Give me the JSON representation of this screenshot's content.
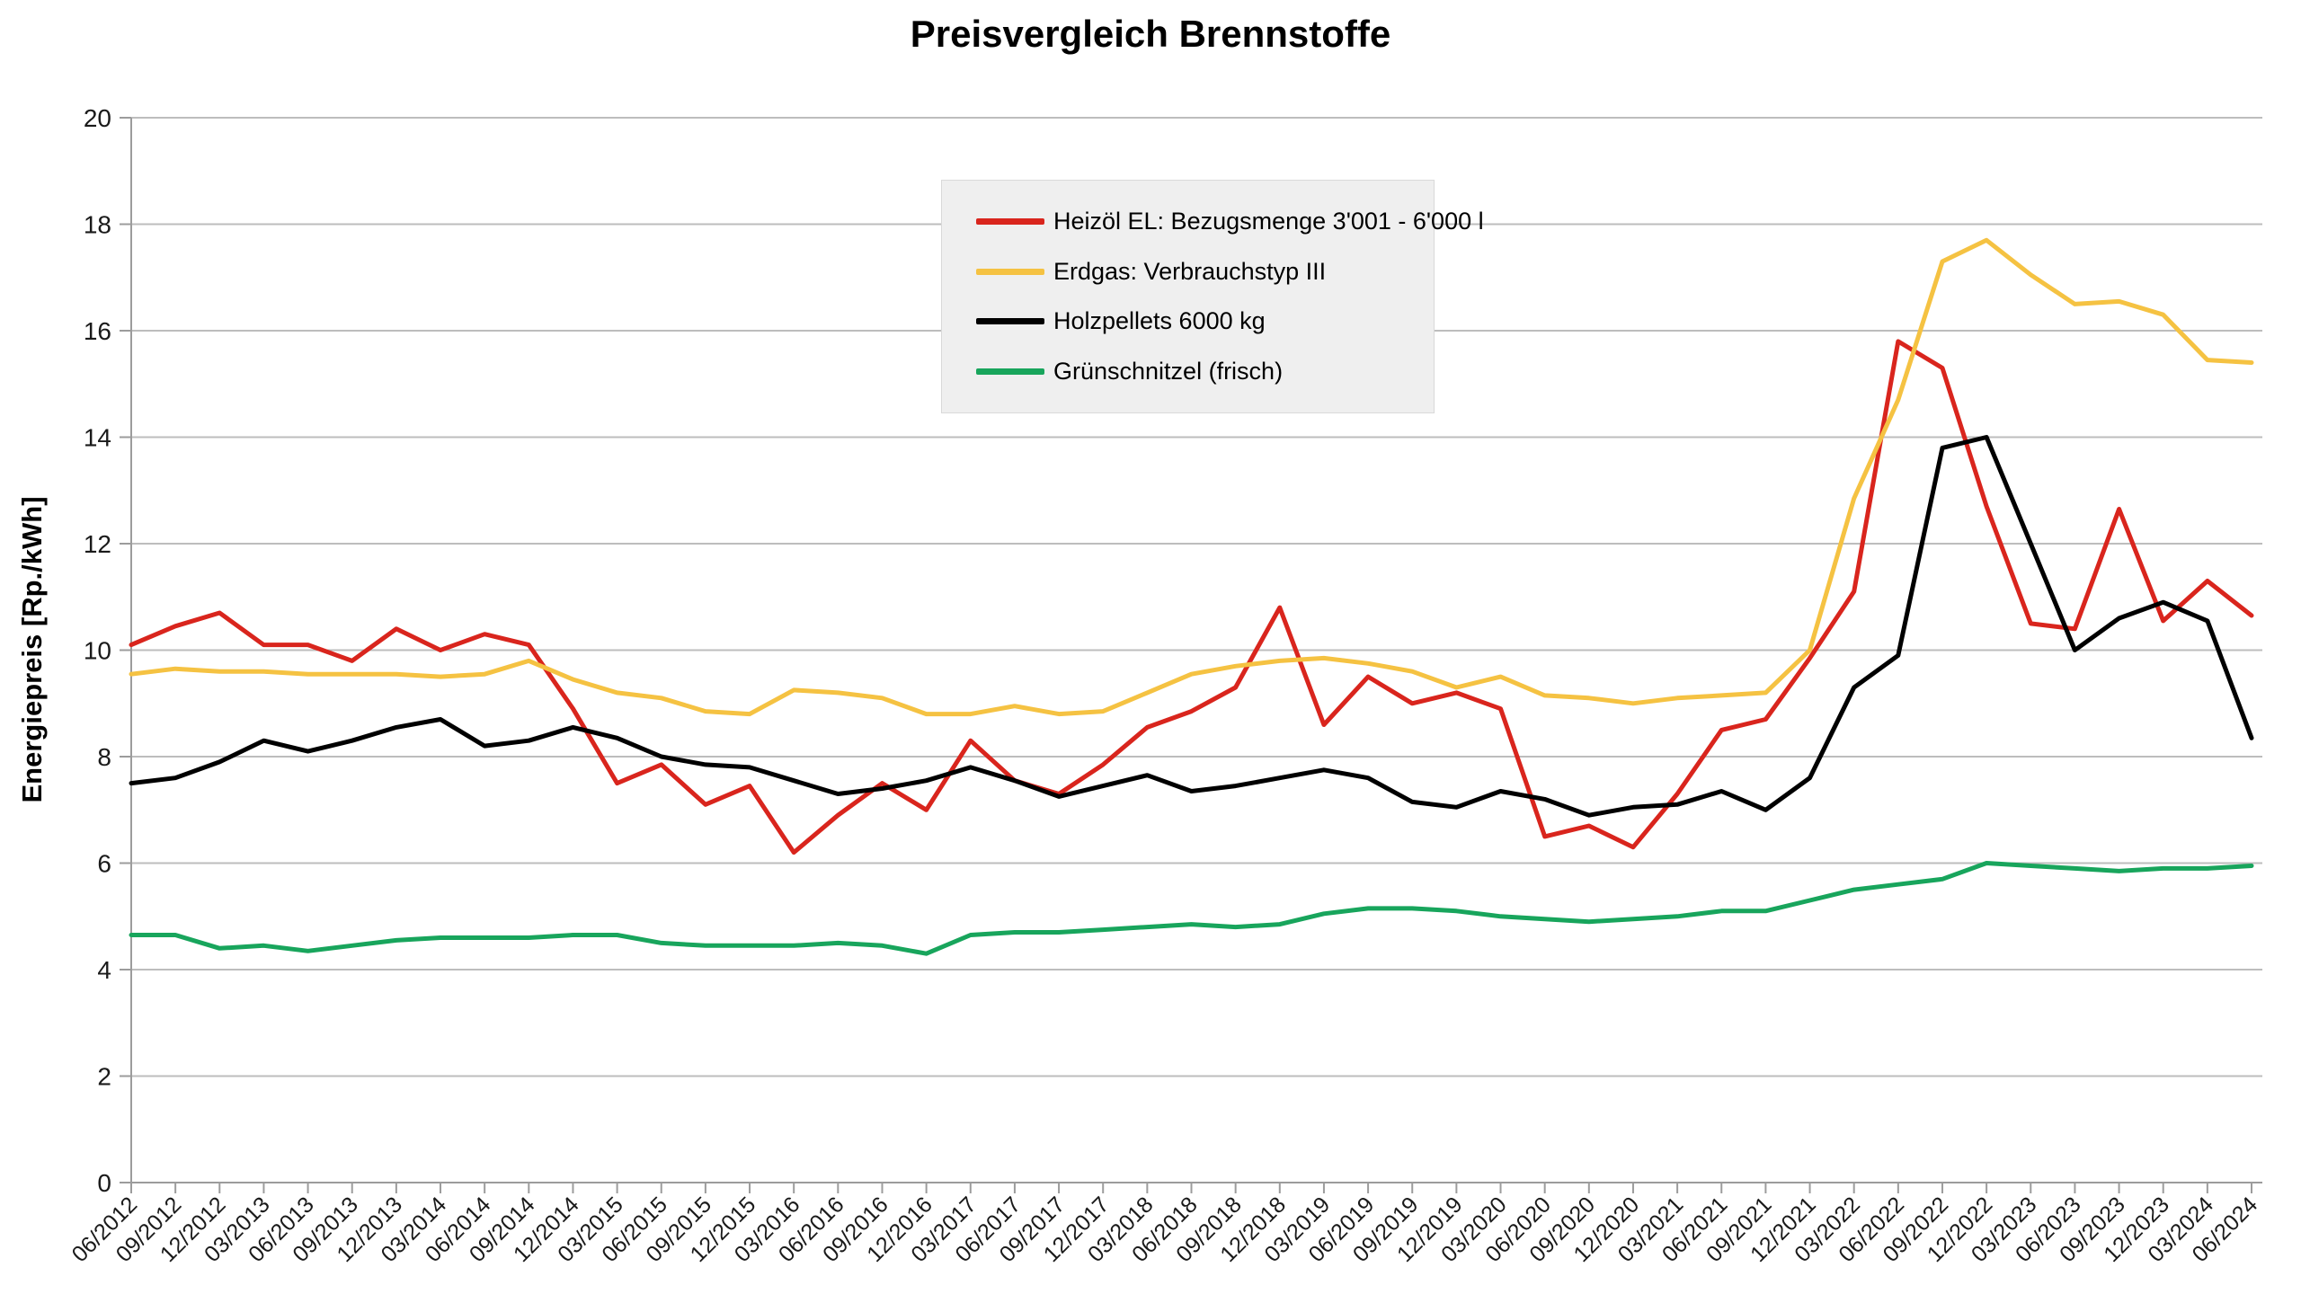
{
  "title": "Preisvergleich Brennstoffe",
  "y_axis": {
    "title": "Energiepreis [Rp./kWh]",
    "min": 0,
    "max": 20,
    "step": 2,
    "tick_labels": [
      "0",
      "2",
      "4",
      "6",
      "8",
      "10",
      "12",
      "14",
      "16",
      "18",
      "20"
    ]
  },
  "x_axis": {
    "labels": [
      "06/2012",
      "09/2012",
      "12/2012",
      "03/2013",
      "06/2013",
      "09/2013",
      "12/2013",
      "03/2014",
      "06/2014",
      "09/2014",
      "12/2014",
      "03/2015",
      "06/2015",
      "09/2015",
      "12/2015",
      "03/2016",
      "06/2016",
      "09/2016",
      "12/2016",
      "03/2017",
      "06/2017",
      "09/2017",
      "12/2017",
      "03/2018",
      "06/2018",
      "09/2018",
      "12/2018",
      "03/2019",
      "06/2019",
      "09/2019",
      "12/2019",
      "03/2020",
      "06/2020",
      "09/2020",
      "12/2020",
      "03/2021",
      "06/2021",
      "09/2021",
      "12/2021",
      "03/2022",
      "06/2022",
      "09/2022",
      "12/2022",
      "03/2023",
      "06/2023",
      "09/2023",
      "12/2023",
      "03/2024",
      "06/2024"
    ]
  },
  "legend": {
    "items": [
      {
        "label": "Heizöl EL: Bezugsmenge 3'001 - 6'000 l",
        "color": "#d9251d"
      },
      {
        "label": "Erdgas: Verbrauchstyp III",
        "color": "#f5c242"
      },
      {
        "label": "Holzpellets 6000 kg",
        "color": "#000000"
      },
      {
        "label": "Grünschnitzel (frisch)",
        "color": "#18a55c"
      }
    ]
  },
  "chart_data": {
    "type": "line",
    "title": "Preisvergleich Brennstoffe",
    "xlabel": "",
    "ylabel": "Energiepreis [Rp./kWh]",
    "ylim": [
      0,
      20
    ],
    "grid": "horizontal",
    "legend_position": "upper-center-left",
    "categories": [
      "06/2012",
      "09/2012",
      "12/2012",
      "03/2013",
      "06/2013",
      "09/2013",
      "12/2013",
      "03/2014",
      "06/2014",
      "09/2014",
      "12/2014",
      "03/2015",
      "06/2015",
      "09/2015",
      "12/2015",
      "03/2016",
      "06/2016",
      "09/2016",
      "12/2016",
      "03/2017",
      "06/2017",
      "09/2017",
      "12/2017",
      "03/2018",
      "06/2018",
      "09/2018",
      "12/2018",
      "03/2019",
      "06/2019",
      "09/2019",
      "12/2019",
      "03/2020",
      "06/2020",
      "09/2020",
      "12/2020",
      "03/2021",
      "06/2021",
      "09/2021",
      "12/2021",
      "03/2022",
      "06/2022",
      "09/2022",
      "12/2022",
      "03/2023",
      "06/2023",
      "09/2023",
      "12/2023",
      "03/2024",
      "06/2024"
    ],
    "series": [
      {
        "name": "Heizöl EL: Bezugsmenge 3'001 - 6'000 l",
        "color": "#d9251d",
        "values": [
          10.1,
          10.45,
          10.7,
          10.1,
          10.1,
          9.8,
          10.4,
          10.0,
          10.3,
          10.1,
          8.9,
          7.5,
          7.85,
          7.1,
          7.45,
          6.2,
          6.9,
          7.5,
          7.0,
          8.3,
          7.55,
          7.3,
          7.85,
          8.55,
          8.85,
          9.3,
          10.8,
          8.6,
          9.5,
          9.0,
          9.2,
          8.9,
          6.5,
          6.7,
          6.3,
          7.3,
          8.5,
          8.7,
          9.85,
          11.1,
          15.8,
          15.3,
          12.7,
          10.5,
          10.4,
          12.65,
          10.55,
          11.3,
          10.65
        ]
      },
      {
        "name": "Erdgas: Verbrauchstyp III",
        "color": "#f5c242",
        "values": [
          9.55,
          9.65,
          9.6,
          9.6,
          9.55,
          9.55,
          9.55,
          9.5,
          9.55,
          9.8,
          9.45,
          9.2,
          9.1,
          8.85,
          8.8,
          9.25,
          9.2,
          9.1,
          8.8,
          8.8,
          8.95,
          8.8,
          8.85,
          9.2,
          9.55,
          9.7,
          9.8,
          9.85,
          9.75,
          9.6,
          9.3,
          9.5,
          9.15,
          9.1,
          9.0,
          9.1,
          9.15,
          9.2,
          10.0,
          12.85,
          14.7,
          17.3,
          17.7,
          17.05,
          16.5,
          16.55,
          16.3,
          15.45,
          15.4
        ]
      },
      {
        "name": "Holzpellets 6000 kg",
        "color": "#000000",
        "values": [
          7.5,
          7.6,
          7.9,
          8.3,
          8.1,
          8.3,
          8.55,
          8.7,
          8.2,
          8.3,
          8.55,
          8.35,
          8.0,
          7.85,
          7.8,
          7.55,
          7.3,
          7.4,
          7.55,
          7.8,
          7.55,
          7.25,
          7.45,
          7.65,
          7.35,
          7.45,
          7.6,
          7.75,
          7.6,
          7.15,
          7.05,
          7.35,
          7.2,
          6.9,
          7.05,
          7.1,
          7.35,
          7.0,
          7.6,
          9.3,
          9.9,
          13.8,
          14.0,
          12.0,
          10.0,
          10.6,
          10.9,
          10.55,
          8.35
        ]
      },
      {
        "name": "Grünschnitzel (frisch)",
        "color": "#18a55c",
        "values": [
          4.65,
          4.65,
          4.4,
          4.45,
          4.35,
          4.45,
          4.55,
          4.6,
          4.6,
          4.6,
          4.65,
          4.65,
          4.5,
          4.45,
          4.45,
          4.45,
          4.5,
          4.45,
          4.3,
          4.65,
          4.7,
          4.7,
          4.75,
          4.8,
          4.85,
          4.8,
          4.85,
          5.05,
          5.15,
          5.15,
          5.1,
          5.0,
          4.95,
          4.9,
          4.95,
          5.0,
          5.1,
          5.1,
          5.3,
          5.5,
          5.6,
          5.7,
          6.0,
          5.95,
          5.9,
          5.85,
          5.9,
          5.9,
          5.95
        ]
      }
    ]
  },
  "style": {
    "grid_color": "#bdbdbd",
    "axis_color": "#9c9c9c",
    "tick_text_color": "#1a1a1a",
    "background": "#ffffff",
    "legend_bg": "#efefef",
    "legend_border": "#d9d9d9",
    "line_width": 5
  }
}
